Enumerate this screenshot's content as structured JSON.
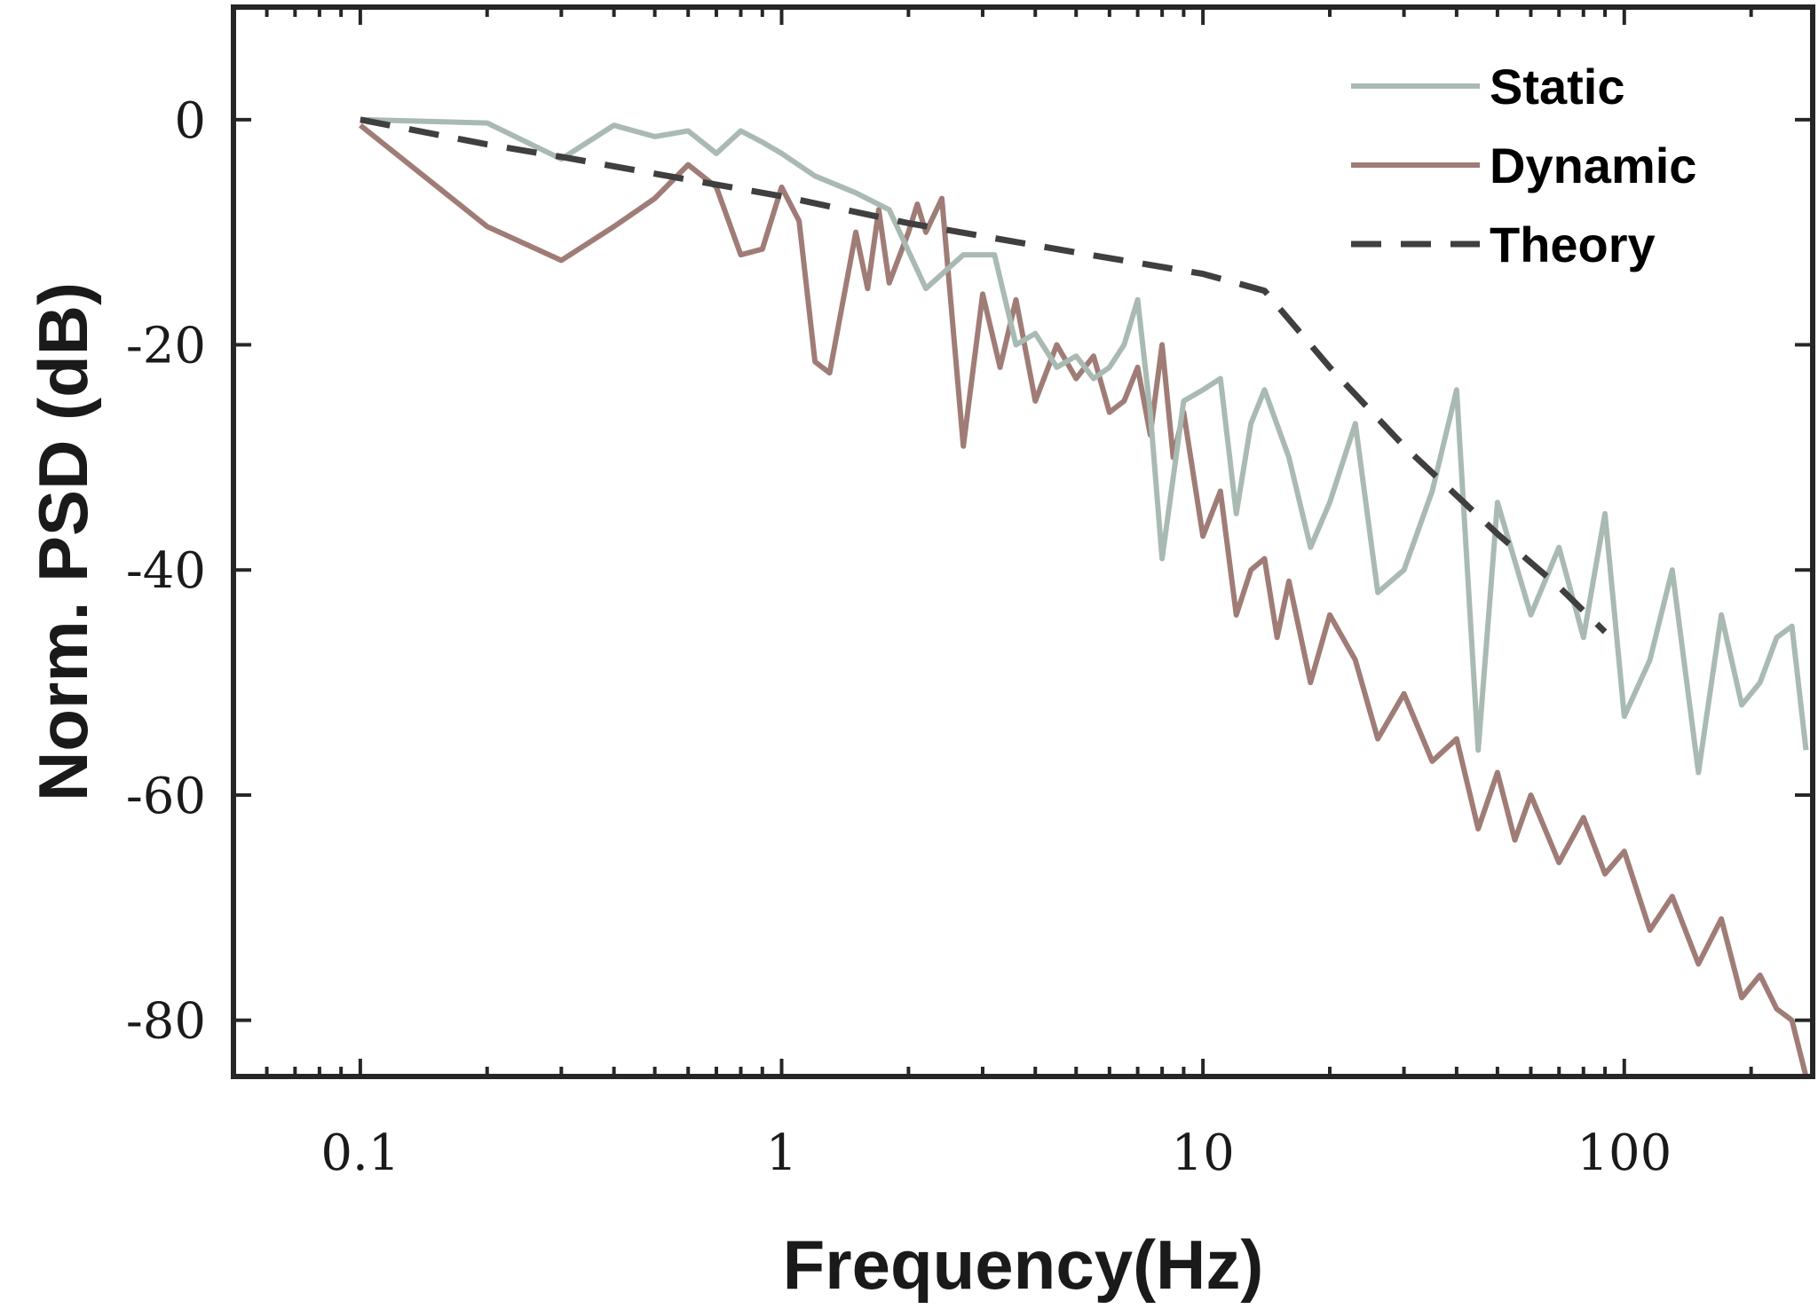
{
  "chart_data": {
    "type": "line",
    "title": "",
    "xlabel": "Frequency(Hz)",
    "ylabel": "Norm. PSD (dB)",
    "xscale": "log",
    "xlim": [
      0.05,
      280
    ],
    "ylim": [
      -85,
      10
    ],
    "xticks": [
      0.1,
      1,
      10,
      100
    ],
    "xtick_labels": [
      "0.1",
      "1",
      "10",
      "100"
    ],
    "yticks": [
      0,
      -20,
      -40,
      -60,
      -80
    ],
    "ytick_labels": [
      "0",
      "-20",
      "-40",
      "-60",
      "-80"
    ],
    "grid": false,
    "legend_position": "top-right",
    "series": [
      {
        "name": "Static",
        "style": "solid",
        "color": "#a9bab3",
        "x": [
          0.1,
          0.2,
          0.3,
          0.4,
          0.5,
          0.6,
          0.7,
          0.8,
          0.9,
          1.0,
          1.2,
          1.5,
          1.8,
          2.2,
          2.7,
          3.2,
          3.6,
          4.0,
          4.5,
          5.0,
          5.5,
          6.0,
          6.5,
          7.0,
          7.5,
          8.0,
          9.0,
          10,
          11,
          12,
          13,
          14,
          16,
          18,
          20,
          23,
          26,
          30,
          35,
          40,
          45,
          50,
          60,
          70,
          80,
          90,
          100,
          115,
          130,
          150,
          170,
          190,
          210,
          230,
          250,
          270
        ],
        "y": [
          0,
          -0.3,
          -3.5,
          -0.5,
          -1.5,
          -1,
          -3,
          -1,
          -2,
          -3,
          -5,
          -6.5,
          -8,
          -15,
          -12,
          -12,
          -20,
          -19,
          -22,
          -21,
          -23,
          -22,
          -20,
          -16,
          -26,
          -39,
          -25,
          -24,
          -23,
          -35,
          -27,
          -24,
          -30,
          -38,
          -34,
          -27,
          -42,
          -40,
          -33,
          -24,
          -56,
          -34,
          -44,
          -38,
          -46,
          -35,
          -53,
          -48,
          -40,
          -58,
          -44,
          -52,
          -50,
          -46,
          -45,
          -56
        ]
      },
      {
        "name": "Dynamic",
        "style": "solid",
        "color": "#a07c76",
        "x": [
          0.1,
          0.2,
          0.3,
          0.4,
          0.5,
          0.6,
          0.7,
          0.8,
          0.9,
          1.0,
          1.1,
          1.2,
          1.3,
          1.5,
          1.6,
          1.7,
          1.8,
          2.0,
          2.1,
          2.2,
          2.4,
          2.7,
          3.0,
          3.3,
          3.6,
          4.0,
          4.5,
          5.0,
          5.5,
          6.0,
          6.5,
          7.0,
          7.5,
          8.0,
          8.5,
          9.0,
          10,
          11,
          12,
          13,
          14,
          15,
          16,
          18,
          20,
          23,
          26,
          30,
          35,
          40,
          45,
          50,
          55,
          60,
          70,
          80,
          90,
          100,
          115,
          130,
          150,
          170,
          190,
          210,
          230,
          250,
          270
        ],
        "y": [
          -0.5,
          -9.5,
          -12.5,
          -9.5,
          -7,
          -4,
          -6,
          -12,
          -11.5,
          -6,
          -9,
          -21.5,
          -22.5,
          -10,
          -15,
          -8,
          -14.5,
          -10,
          -7.5,
          -10,
          -7,
          -29,
          -15.5,
          -22,
          -16,
          -25,
          -20,
          -23,
          -21,
          -26,
          -25,
          -22,
          -28,
          -20,
          -30,
          -26,
          -37,
          -33,
          -44,
          -40,
          -39,
          -46,
          -41,
          -50,
          -44,
          -48,
          -55,
          -51,
          -57,
          -55,
          -63,
          -58,
          -64,
          -60,
          -66,
          -62,
          -67,
          -65,
          -72,
          -69,
          -75,
          -71,
          -78,
          -76,
          -79,
          -80,
          -85
        ]
      },
      {
        "name": "Theory",
        "style": "dashed",
        "color": "#3f3f3f",
        "x": [
          0.1,
          0.2,
          0.3,
          0.5,
          1,
          2,
          5,
          10,
          14,
          20,
          30,
          50,
          70,
          90
        ],
        "y": [
          0,
          -2.2,
          -3.3,
          -4.8,
          -6.8,
          -9.2,
          -11.8,
          -13.7,
          -15.2,
          -22,
          -29,
          -36.8,
          -41.5,
          -45.5
        ]
      }
    ]
  }
}
